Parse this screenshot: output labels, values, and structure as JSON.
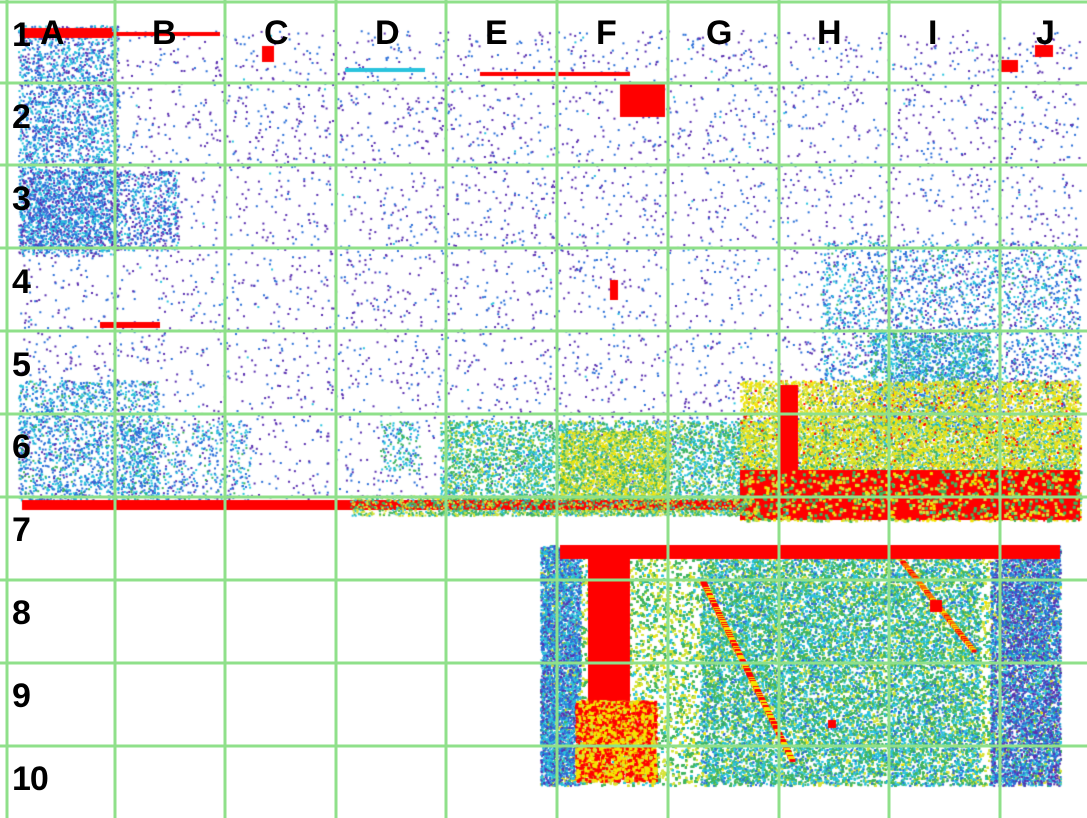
{
  "heatmap": {
    "columns": [
      "A",
      "B",
      "C",
      "D",
      "E",
      "F",
      "G",
      "H",
      "I",
      "J"
    ],
    "rows": [
      "1",
      "2",
      "3",
      "4",
      "5",
      "6",
      "7",
      "8",
      "9",
      "10"
    ],
    "grid_color": "#8fe08a",
    "palette": [
      "#5a2fb0",
      "#2a6fd8",
      "#29c3dd",
      "#3fb45f",
      "#d6e23a",
      "#f5e400",
      "#ff0000"
    ]
  }
}
